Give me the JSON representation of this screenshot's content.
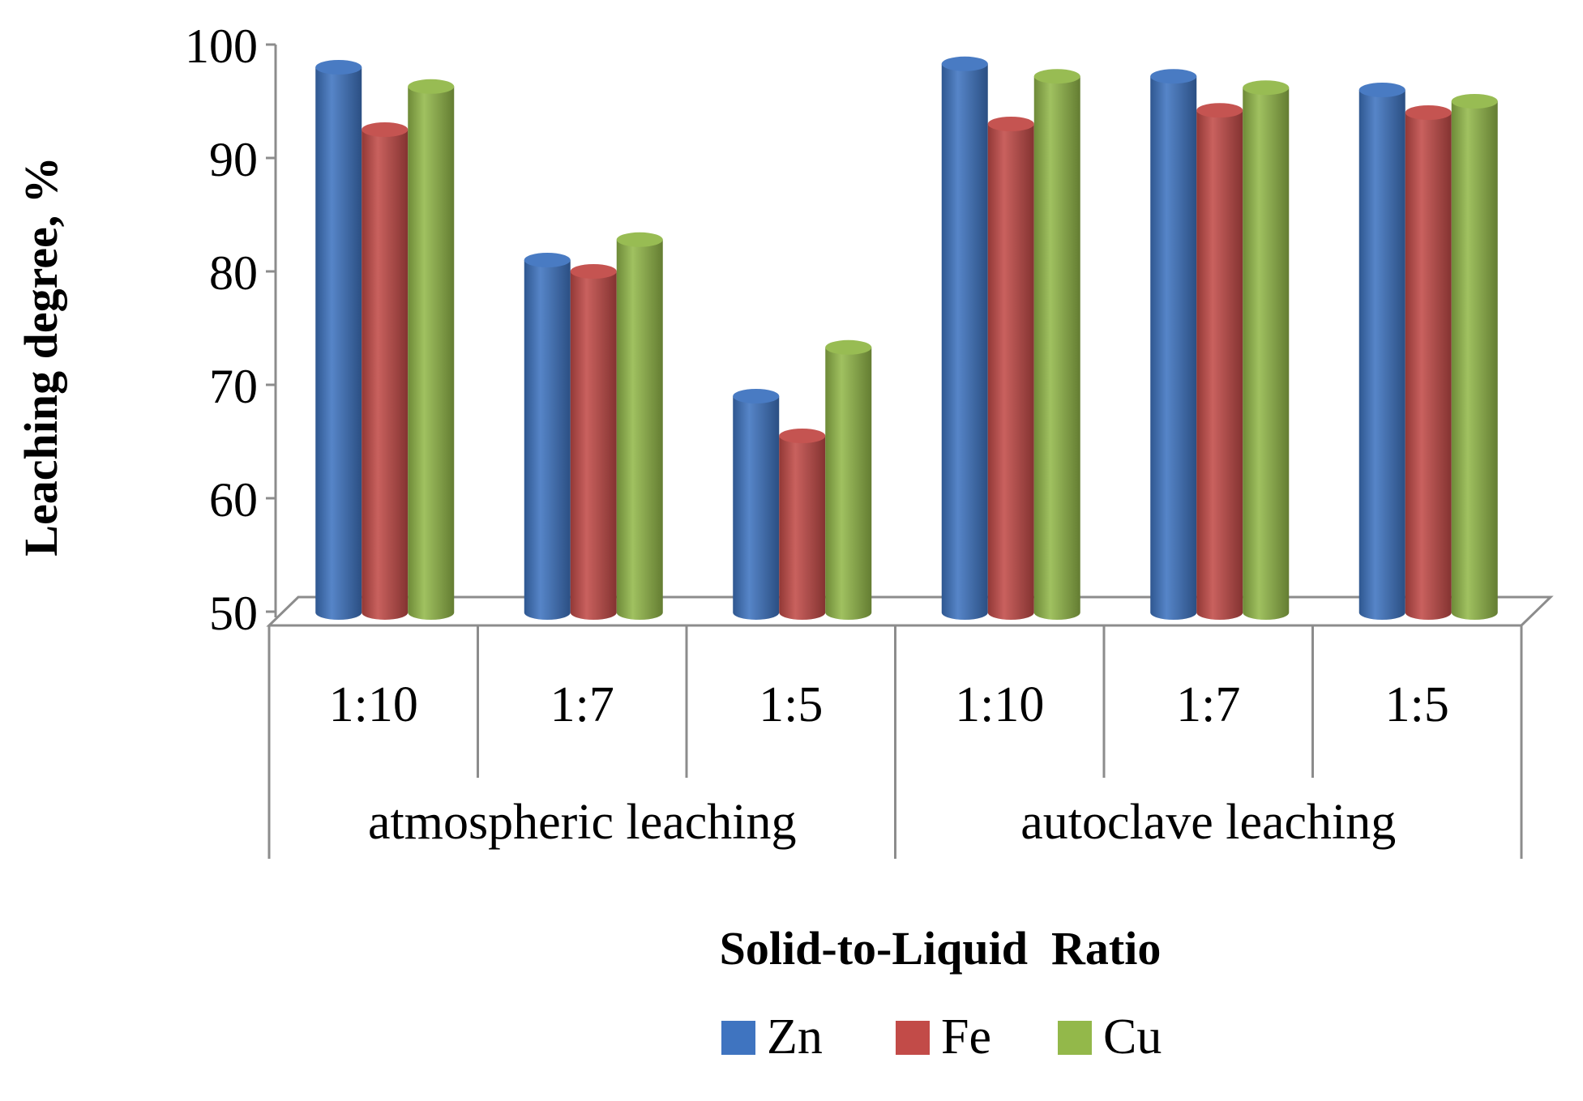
{
  "chart_data": {
    "type": "bar",
    "style": "3d-cylinder",
    "categories": [
      "1:10",
      "1:7",
      "1:5",
      "1:10",
      "1:7",
      "1:5"
    ],
    "groups": [
      {
        "label": "atmospheric leaching",
        "span": [
          0,
          2
        ]
      },
      {
        "label": "autoclave leaching",
        "span": [
          3,
          5
        ]
      }
    ],
    "series": [
      {
        "name": "Zn",
        "color": "#3f74c0",
        "values": [
          98,
          81,
          69,
          98.3,
          97.2,
          96
        ]
      },
      {
        "name": "Fe",
        "color": "#c24b48",
        "values": [
          92.5,
          80,
          65.5,
          93,
          94.2,
          94
        ]
      },
      {
        "name": "Cu",
        "color": "#93b84a",
        "values": [
          96.3,
          82.8,
          73.3,
          97.2,
          96.2,
          95
        ]
      }
    ],
    "ylabel": "Leaching degree, %",
    "xlabel": "Solid-to-Liquid  Ratio",
    "ylim": [
      50,
      100
    ],
    "yticks": [
      "50",
      "60",
      "70",
      "80",
      "90",
      "100"
    ],
    "legend": "bottom"
  }
}
